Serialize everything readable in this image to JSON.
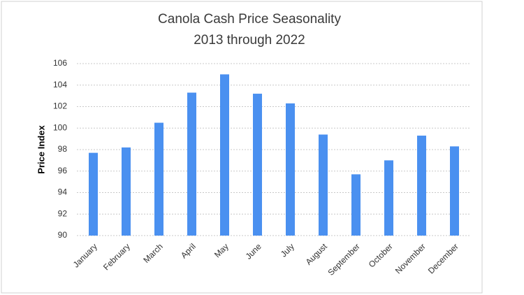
{
  "chart_data": {
    "type": "bar",
    "title": "Canola Cash Price Seasonality",
    "subtitle": "2013 through 2022",
    "y_label": "Price Index",
    "categories": [
      "January",
      "February",
      "March",
      "April",
      "May",
      "June",
      "July",
      "August",
      "September",
      "October",
      "November",
      "December"
    ],
    "values": [
      97.7,
      98.2,
      100.5,
      103.3,
      105.0,
      103.2,
      102.3,
      99.4,
      95.7,
      97.0,
      99.3,
      98.3
    ],
    "color": "#4a90f0",
    "ylim": [
      90,
      106
    ],
    "yticks": [
      90,
      92,
      94,
      96,
      98,
      100,
      102,
      104,
      106
    ],
    "grid": true
  }
}
